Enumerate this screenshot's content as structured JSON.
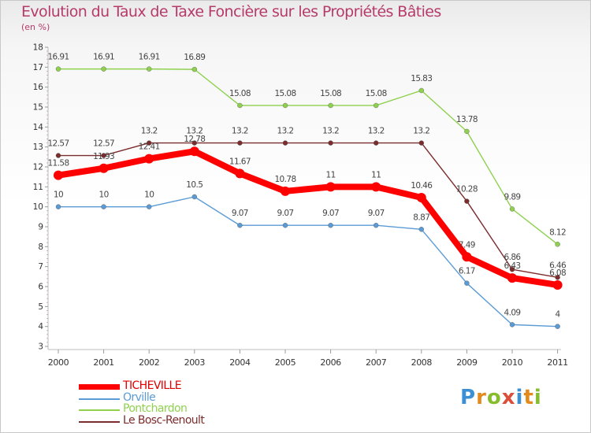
{
  "title": "Evolution du Taux de Taxe Foncière sur les Propriétés Bâties",
  "subtitle": "(en %)",
  "brand": "Proxiti",
  "chart_data": {
    "type": "line",
    "title": "Evolution du Taux de Taxe Foncière sur les Propriétés Bâties",
    "ylabel": "(en %)",
    "xlabel": "",
    "ylim": [
      3,
      18
    ],
    "yticks": [
      3,
      4,
      5,
      6,
      7,
      8,
      9,
      10,
      11,
      12,
      13,
      14,
      15,
      16,
      17,
      18
    ],
    "grid": false,
    "categories": [
      "2000",
      "2001",
      "2002",
      "2003",
      "2004",
      "2005",
      "2006",
      "2007",
      "2008",
      "2009",
      "2010",
      "2011"
    ],
    "series": [
      {
        "name": "TICHEVILLE",
        "color": "#ff0000",
        "values": [
          11.58,
          11.93,
          12.41,
          12.78,
          11.67,
          10.78,
          11,
          11,
          10.46,
          7.49,
          6.43,
          6.08
        ]
      },
      {
        "name": "Orville",
        "color": "#5b9bd5",
        "values": [
          10,
          10,
          10,
          10.5,
          9.07,
          9.07,
          9.07,
          9.07,
          8.87,
          6.17,
          4.09,
          4
        ]
      },
      {
        "name": "Pontchardon",
        "color": "#8fd14f",
        "values": [
          16.91,
          16.91,
          16.91,
          16.89,
          15.08,
          15.08,
          15.08,
          15.08,
          15.83,
          13.78,
          9.89,
          8.12
        ]
      },
      {
        "name": "Le Bosc-Renoult",
        "color": "#7b2c2c",
        "values": [
          12.57,
          12.57,
          13.2,
          13.2,
          13.2,
          13.2,
          13.2,
          13.2,
          13.2,
          10.28,
          6.86,
          6.46
        ]
      }
    ],
    "value_labels": [
      [
        "11.58",
        "11.93",
        "12.41",
        "12.78",
        "11.67",
        "10.78",
        "11",
        "11",
        "10.46",
        "7.49",
        "6.43",
        "6.08"
      ],
      [
        "10",
        "10",
        "10",
        "10.5",
        "9.07",
        "9.07",
        "9.07",
        "9.07",
        "8.87",
        "6.17",
        "4.09",
        "4"
      ],
      [
        "16.91",
        "16.91",
        "16.91",
        "16.89",
        "15.08",
        "15.08",
        "15.08",
        "15.08",
        "15.83",
        "13.78",
        "9.89",
        "8.12"
      ],
      [
        "12.57",
        "12.57",
        "13.2",
        "13.2",
        "13.2",
        "13.2",
        "13.2",
        "13.2",
        "13.2",
        "10.28",
        "6.86",
        "6.46"
      ]
    ],
    "legend_position": "bottom-left"
  }
}
